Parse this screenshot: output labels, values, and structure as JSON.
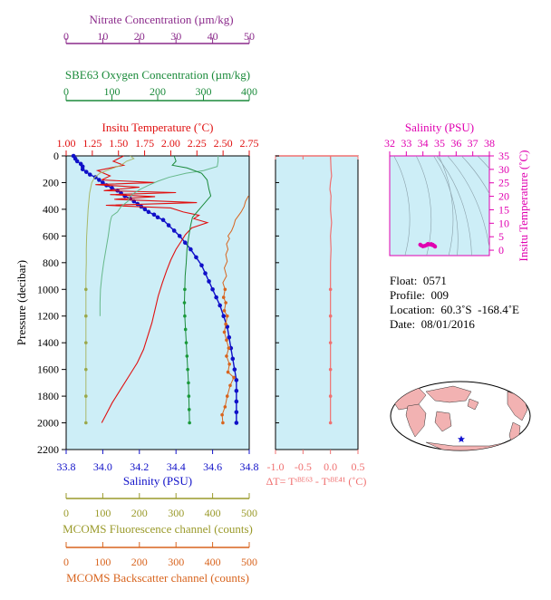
{
  "colors": {
    "nitrate": "#8b2a8b",
    "oxygen": "#1a8a3a",
    "temperature": "#e01010",
    "salinity": "#1010c8",
    "fluorescence": "#9a9a2a",
    "backscatter": "#d8641e",
    "delta": "#f07070",
    "ts": "#e000b0",
    "panel_bg": "#cdeef7",
    "land": "#f2b2b2"
  },
  "chart_data": [
    {
      "type": "line",
      "panel": "main-profile",
      "y_axis": {
        "label": "Pressure (decibar)",
        "range": [
          0,
          2200
        ],
        "ticks": [
          0,
          200,
          400,
          600,
          800,
          1000,
          1200,
          1400,
          1600,
          1800,
          2000,
          2200
        ],
        "inverted": true
      },
      "axes": {
        "nitrate": {
          "label": "Nitrate Concentration (µm/kg)",
          "range": [
            0,
            50
          ],
          "ticks": [
            0,
            10,
            20,
            30,
            40,
            50
          ]
        },
        "oxygen": {
          "label": "SBE63 Oxygen Concentration (µm/kg)",
          "range": [
            0,
            400
          ],
          "ticks": [
            0,
            100,
            200,
            300,
            400
          ]
        },
        "temperature": {
          "label": "Insitu Temperature (˚C)",
          "range": [
            1.0,
            2.75
          ],
          "ticks": [
            "1.00",
            "1.25",
            "1.50",
            "1.75",
            "2.00",
            "2.25",
            "2.50",
            "2.75"
          ]
        },
        "salinity": {
          "label": "Salinity (PSU)",
          "range": [
            33.8,
            34.8
          ],
          "ticks": [
            "33.8",
            "34.0",
            "34.2",
            "34.4",
            "34.6",
            "34.8"
          ]
        },
        "fluorescence": {
          "label": "MCOMS Fluorescence channel (counts)",
          "range": [
            0,
            500
          ],
          "ticks": [
            0,
            100,
            200,
            300,
            400,
            500
          ]
        },
        "backscatter": {
          "label": "MCOMS Backscatter channel (counts)",
          "range": [
            0,
            500
          ],
          "ticks": [
            0,
            100,
            200,
            300,
            400,
            500
          ]
        }
      },
      "series": [
        {
          "axis": "salinity",
          "points": [
            [
              33.84,
              0
            ],
            [
              33.85,
              20
            ],
            [
              33.86,
              40
            ],
            [
              33.88,
              60
            ],
            [
              33.89,
              80
            ],
            [
              33.89,
              100
            ],
            [
              33.91,
              120
            ],
            [
              33.93,
              140
            ],
            [
              33.96,
              160
            ],
            [
              33.98,
              180
            ],
            [
              34.0,
              200
            ],
            [
              34.02,
              220
            ],
            [
              34.05,
              240
            ],
            [
              34.08,
              260
            ],
            [
              34.1,
              280
            ],
            [
              34.12,
              300
            ],
            [
              34.15,
              320
            ],
            [
              34.17,
              340
            ],
            [
              34.19,
              360
            ],
            [
              34.21,
              380
            ],
            [
              34.23,
              400
            ],
            [
              34.25,
              420
            ],
            [
              34.28,
              440
            ],
            [
              34.3,
              460
            ],
            [
              34.33,
              480
            ],
            [
              34.36,
              520
            ],
            [
              34.39,
              560
            ],
            [
              34.42,
              600
            ],
            [
              34.45,
              650
            ],
            [
              34.48,
              700
            ],
            [
              34.51,
              760
            ],
            [
              34.54,
              820
            ],
            [
              34.56,
              880
            ],
            [
              34.58,
              940
            ],
            [
              34.6,
              1000
            ],
            [
              34.62,
              1060
            ],
            [
              34.64,
              1120
            ],
            [
              34.66,
              1200
            ],
            [
              34.68,
              1280
            ],
            [
              34.69,
              1360
            ],
            [
              34.7,
              1440
            ],
            [
              34.71,
              1520
            ],
            [
              34.72,
              1600
            ],
            [
              34.73,
              1680
            ],
            [
              34.73,
              1760
            ],
            [
              34.73,
              1840
            ],
            [
              34.73,
              1920
            ],
            [
              34.73,
              2000
            ]
          ]
        },
        {
          "axis": "temperature",
          "points": [
            [
              1.55,
              0
            ],
            [
              1.45,
              40
            ],
            [
              1.55,
              70
            ],
            [
              1.3,
              110
            ],
            [
              1.42,
              150
            ],
            [
              1.34,
              180
            ],
            [
              1.85,
              200
            ],
            [
              1.28,
              215
            ],
            [
              1.7,
              235
            ],
            [
              1.36,
              260
            ],
            [
              2.05,
              275
            ],
            [
              1.42,
              290
            ],
            [
              1.85,
              305
            ],
            [
              1.46,
              325
            ],
            [
              2.25,
              350
            ],
            [
              1.38,
              370
            ],
            [
              2.0,
              390
            ],
            [
              2.12,
              420
            ],
            [
              2.27,
              445
            ],
            [
              2.22,
              470
            ],
            [
              2.35,
              500
            ],
            [
              2.2,
              540
            ],
            [
              2.14,
              590
            ],
            [
              2.1,
              640
            ],
            [
              2.05,
              700
            ],
            [
              2.0,
              780
            ],
            [
              1.96,
              860
            ],
            [
              1.92,
              950
            ],
            [
              1.88,
              1050
            ],
            [
              1.85,
              1150
            ],
            [
              1.82,
              1250
            ],
            [
              1.78,
              1350
            ],
            [
              1.74,
              1450
            ],
            [
              1.68,
              1550
            ],
            [
              1.6,
              1650
            ],
            [
              1.52,
              1750
            ],
            [
              1.44,
              1850
            ],
            [
              1.38,
              1940
            ],
            [
              1.34,
              2000
            ]
          ]
        },
        {
          "axis": "oxygen",
          "points": [
            [
              332,
              0
            ],
            [
              332,
              40
            ],
            [
              330,
              80
            ],
            [
              300,
              110
            ],
            [
              262,
              130
            ],
            [
              225,
              160
            ],
            [
              200,
              190
            ],
            [
              180,
              220
            ],
            [
              162,
              250
            ],
            [
              148,
              280
            ],
            [
              138,
              310
            ],
            [
              135,
              340
            ],
            [
              120,
              380
            ],
            [
              112,
              420
            ],
            [
              100,
              450
            ],
            [
              98,
              470
            ],
            [
              96,
              500
            ],
            [
              92,
              600
            ],
            [
              87,
              700
            ],
            [
              82,
              800
            ],
            [
              78,
              900
            ],
            [
              75,
              1000
            ],
            [
              74,
              1100
            ],
            [
              74,
              1200
            ]
          ]
        },
        {
          "axis": "nitrate",
          "points": [
            [
              29.5,
              0
            ],
            [
              30.0,
              40
            ],
            [
              29.0,
              70
            ],
            [
              33.0,
              90
            ],
            [
              37.0,
              130
            ],
            [
              38.5,
              180
            ],
            [
              39.0,
              250
            ],
            [
              39.5,
              300
            ],
            [
              37.0,
              380
            ],
            [
              34.5,
              460
            ],
            [
              34.0,
              520
            ],
            [
              33.5,
              600
            ],
            [
              33.0,
              700
            ],
            [
              32.8,
              800
            ],
            [
              32.5,
              900
            ],
            [
              32.4,
              1000
            ],
            [
              32.3,
              1100
            ],
            [
              32.4,
              1200
            ],
            [
              32.6,
              1300
            ],
            [
              32.8,
              1400
            ],
            [
              33.0,
              1500
            ],
            [
              33.2,
              1600
            ],
            [
              33.4,
              1700
            ],
            [
              33.5,
              1800
            ],
            [
              33.6,
              1900
            ],
            [
              33.7,
              2000
            ]
          ]
        },
        {
          "axis": "fluorescence",
          "points": [
            [
              175,
              0
            ],
            [
              185,
              20
            ],
            [
              165,
              40
            ],
            [
              150,
              70
            ],
            [
              110,
              110
            ],
            [
              92,
              130
            ],
            [
              78,
              160
            ],
            [
              70,
              200
            ],
            [
              64,
              280
            ],
            [
              60,
              400
            ],
            [
              58,
              500
            ],
            [
              56,
              600
            ],
            [
              55,
              700
            ],
            [
              55,
              800
            ],
            [
              54,
              900
            ],
            [
              54,
              1000
            ],
            [
              54,
              1200
            ],
            [
              54,
              1400
            ],
            [
              54,
              1600
            ],
            [
              54,
              1800
            ],
            [
              54,
              2000
            ]
          ]
        },
        {
          "axis": "backscatter",
          "points": [
            [
              498,
              300
            ],
            [
              490,
              340
            ],
            [
              486,
              380
            ],
            [
              478,
              420
            ],
            [
              470,
              450
            ],
            [
              462,
              480
            ],
            [
              458,
              520
            ],
            [
              452,
              560
            ],
            [
              442,
              600
            ],
            [
              446,
              620
            ],
            [
              438,
              660
            ],
            [
              442,
              700
            ],
            [
              436,
              740
            ],
            [
              440,
              790
            ],
            [
              432,
              840
            ],
            [
              438,
              900
            ],
            [
              428,
              950
            ],
            [
              434,
              1000
            ],
            [
              430,
              1060
            ],
            [
              436,
              1100
            ],
            [
              432,
              1160
            ],
            [
              440,
              1200
            ],
            [
              436,
              1260
            ],
            [
              432,
              1320
            ],
            [
              438,
              1380
            ],
            [
              444,
              1440
            ],
            [
              438,
              1500
            ],
            [
              446,
              1560
            ],
            [
              442,
              1620
            ],
            [
              458,
              1660
            ],
            [
              448,
              1720
            ],
            [
              440,
              1800
            ],
            [
              434,
              1880
            ],
            [
              426,
              1940
            ],
            [
              428,
              2000
            ]
          ]
        }
      ]
    },
    {
      "type": "line",
      "panel": "delta-temperature",
      "x_axis": {
        "label": "ΔT= Tˢᴮᴱ⁶³ - Tˢᴮᴱ⁴¹ (˚C)",
        "range": [
          -1.0,
          0.5
        ],
        "ticks": [
          "-1.0",
          "-0.5",
          "0.0",
          "0.5"
        ]
      },
      "series": [
        {
          "points": [
            [
              0.0,
              0
            ],
            [
              0.01,
              100
            ],
            [
              0.02,
              150
            ],
            [
              0.0,
              200
            ],
            [
              -0.01,
              250
            ],
            [
              0.01,
              300
            ],
            [
              0.0,
              400
            ],
            [
              0.02,
              500
            ],
            [
              0.0,
              600
            ],
            [
              0.01,
              700
            ],
            [
              0.0,
              800
            ],
            [
              0.0,
              1000
            ],
            [
              0.0,
              1200
            ],
            [
              0.0,
              1400
            ],
            [
              0.0,
              1600
            ],
            [
              0.0,
              1800
            ],
            [
              0.0,
              2000
            ]
          ]
        }
      ]
    },
    {
      "type": "scatter",
      "panel": "ts-diagram",
      "x_axis": {
        "label": "Salinity (PSU)",
        "range": [
          32,
          38
        ],
        "ticks": [
          32,
          33,
          34,
          35,
          36,
          37,
          38
        ]
      },
      "y_axis": {
        "label": "Insitu Temperature (˚C)",
        "range": [
          -2,
          35
        ],
        "ticks": [
          0,
          5,
          10,
          15,
          20,
          25,
          30,
          35
        ]
      },
      "series": [
        {
          "points": [
            [
              33.84,
              2.05
            ],
            [
              33.9,
              1.75
            ],
            [
              34.0,
              1.45
            ],
            [
              34.1,
              1.6
            ],
            [
              34.2,
              1.85
            ],
            [
              34.3,
              2.15
            ],
            [
              34.4,
              2.2
            ],
            [
              34.5,
              2.05
            ],
            [
              34.6,
              1.85
            ],
            [
              34.7,
              1.55
            ],
            [
              34.73,
              1.35
            ],
            [
              34.6,
              2.0
            ],
            [
              34.5,
              2.25
            ],
            [
              34.3,
              2.3
            ]
          ]
        }
      ]
    }
  ],
  "float_info": {
    "float": "Float:  0571",
    "profile": "Profile:  009",
    "location": "Location:  60.3˚S  -168.4˚E",
    "date": "Date:  08/01/2016"
  },
  "map": {
    "location_lat": -60.3,
    "location_lon": -168.4
  }
}
